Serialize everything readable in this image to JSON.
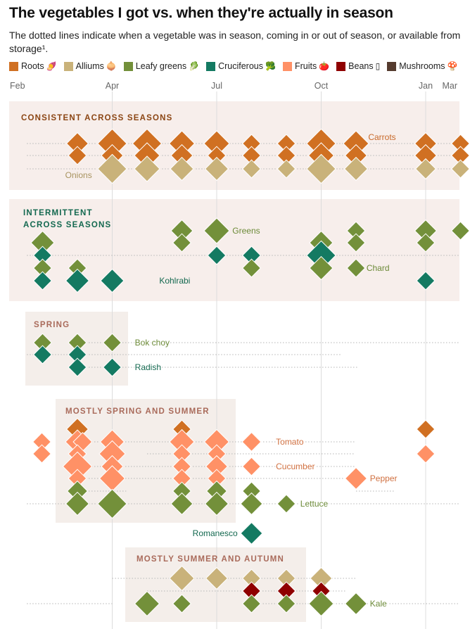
{
  "header": {
    "title": "The vegetables I got vs. when they're actually in season",
    "subtitle": "The dotted lines indicate when a vegetable was in season, coming in or out of season, or available from storage¹."
  },
  "legend": [
    {
      "label": "Roots",
      "color": "#d07022",
      "emoji": "🍠",
      "icon": "sweet-potato-icon"
    },
    {
      "label": "Alliums",
      "color": "#c9b27a",
      "emoji": "🧅",
      "icon": "onion-icon"
    },
    {
      "label": "Leafy greens",
      "color": "#73903a",
      "emoji": "🥬",
      "icon": "leafy-green-icon"
    },
    {
      "label": "Cruciferous",
      "color": "#147a62",
      "emoji": "🥦",
      "icon": "broccoli-icon"
    },
    {
      "label": "Fruits",
      "color": "#ff9166",
      "emoji": "🍅",
      "icon": "tomato-icon"
    },
    {
      "label": "Beans",
      "color": "#8f0000",
      "emoji": "▯",
      "icon": "beans-icon"
    },
    {
      "label": "Mushrooms",
      "color": "#553b2e",
      "emoji": "🍄",
      "icon": "mushroom-icon"
    }
  ],
  "chart_data": {
    "type": "scatter",
    "title": "The vegetables I got vs. when they're actually in season",
    "x_axis": {
      "unit": "month index (0 = Feb)",
      "ticks": [
        {
          "label": "Feb",
          "value": 0
        },
        {
          "label": "Apr",
          "value": 2
        },
        {
          "label": "Jul",
          "value": 5
        },
        {
          "label": "Oct",
          "value": 8
        },
        {
          "label": "Jan",
          "value": 11
        },
        {
          "label": "Mar",
          "value": 13
        }
      ],
      "gridlines_at": [
        2,
        5,
        8,
        11
      ],
      "range": [
        -0.45,
        13.6
      ]
    },
    "size_scale_note": "diamond size = relative quantity purchased (1 small – 3 large)",
    "panels": [
      {
        "title": "CONSISTENT ACCROSS SEASONS",
        "title_text": "CONSISTENT ACROSS SEASONS",
        "title_color": "#8b4513",
        "rows": [
          {
            "category": "Roots",
            "season": [
              [
                -0.45,
                13.6
              ]
            ],
            "points": [
              [
                1,
                2
              ],
              [
                2,
                3
              ],
              [
                3,
                3
              ],
              [
                4,
                2.5
              ],
              [
                5,
                2.5
              ],
              [
                6,
                1.5
              ],
              [
                7,
                1.5
              ],
              [
                8,
                3
              ],
              [
                9,
                2.5
              ],
              [
                11,
                2
              ],
              [
                12,
                1.5
              ]
            ]
          },
          {
            "category": "Roots",
            "season": [
              [
                -0.45,
                13.6
              ]
            ],
            "points": [
              [
                1,
                1.5
              ],
              [
                2,
                2
              ],
              [
                3,
                2.5
              ],
              [
                4,
                2
              ],
              [
                5,
                1.5
              ],
              [
                6,
                1.5
              ],
              [
                7,
                1.5
              ],
              [
                8,
                2.5
              ],
              [
                9,
                2
              ],
              [
                11,
                2
              ],
              [
                12,
                1.5
              ]
            ]
          },
          {
            "category": "Alliums",
            "season": [
              [
                -0.45,
                13.6
              ]
            ],
            "points": [
              [
                2,
                3
              ],
              [
                3,
                2.5
              ],
              [
                4,
                2.2
              ],
              [
                5,
                2.2
              ],
              [
                6,
                1.5
              ],
              [
                7,
                1.5
              ],
              [
                8,
                3
              ],
              [
                9,
                2.2
              ],
              [
                11,
                1.8
              ],
              [
                12,
                1.5
              ]
            ]
          }
        ],
        "labels": [
          {
            "text": "Carrots",
            "row": 0,
            "x": 9.35,
            "color": "#c8692a"
          },
          {
            "text": "Onions",
            "row": 2,
            "x": 0.65,
            "color": "#a8935f",
            "below": true
          }
        ]
      },
      {
        "title_text": "INTERMITTENT\nACROSS SEASONS",
        "title_color": "#13684f",
        "rows": [
          {
            "category": "Leafy greens",
            "season": [],
            "points": [
              [
                4,
                2
              ],
              [
                5,
                2.5
              ],
              [
                9,
                1.5
              ],
              [
                11,
                2
              ],
              [
                12,
                1.5
              ]
            ]
          },
          {
            "category": "Leafy greens",
            "season": [],
            "points": [
              [
                0,
                2.2
              ],
              [
                4,
                1.5
              ],
              [
                8,
                2.2
              ],
              [
                9,
                1.5
              ],
              [
                11,
                1.5
              ]
            ]
          },
          {
            "category": "Cruciferous",
            "season": [
              [
                -0.45,
                13.6
              ]
            ],
            "points": [
              [
                0,
                1.5
              ],
              [
                5,
                1.5
              ],
              [
                6,
                1.5
              ],
              [
                8,
                3
              ]
            ]
          },
          {
            "category": "Leafy greens",
            "season": [],
            "points": [
              [
                0,
                1.5
              ],
              [
                1,
                1.5
              ],
              [
                6,
                1.5
              ],
              [
                8,
                2.2
              ],
              [
                9,
                1.5
              ]
            ]
          },
          {
            "category": "Cruciferous",
            "season": [],
            "points": [
              [
                0,
                1.5
              ],
              [
                1,
                2.2
              ],
              [
                2,
                2.2
              ],
              [
                11,
                1.5
              ]
            ]
          }
        ],
        "labels": [
          {
            "text": "Greens",
            "row": 0,
            "x": 5.45,
            "color": "#6c8a38"
          },
          {
            "text": "Kohlrabi",
            "row": 4,
            "x": 3.35,
            "color": "#13684f"
          },
          {
            "text": "Chard",
            "row": 3,
            "x": 9.3,
            "color": "#6c8a38"
          }
        ]
      },
      {
        "title_text": "SPRING",
        "title_color": "#a96a5a",
        "rows": [
          {
            "category": "Leafy greens",
            "season": [
              [
                1,
                11.95
              ]
            ],
            "points": [
              [
                0,
                1.5
              ],
              [
                1,
                1.5
              ],
              [
                2,
                1.5
              ]
            ]
          },
          {
            "category": "Cruciferous",
            "season": [
              [
                -0.45,
                8.6
              ]
            ],
            "points": [
              [
                0,
                1.5
              ],
              [
                1,
                1.5
              ]
            ]
          },
          {
            "category": "Cruciferous",
            "season": [
              [
                1,
                9.05
              ]
            ],
            "points": [
              [
                1,
                1.5
              ],
              [
                2,
                1.5
              ]
            ]
          }
        ],
        "labels": [
          {
            "text": "Bok choy",
            "row": 0,
            "x": 2.65,
            "color": "#6c8a38"
          },
          {
            "text": "Radish",
            "row": 2,
            "x": 2.65,
            "color": "#13684f"
          }
        ]
      },
      {
        "title_text": "MOSTLY SPRING AND SUMMER",
        "title_color": "#a96a5a",
        "rows": [
          {
            "category": "Roots",
            "season": [],
            "points": [
              [
                1,
                2
              ],
              [
                4,
                1.5
              ],
              [
                11,
                1.5
              ]
            ]
          },
          {
            "category": "Fruits",
            "season": [
              [
                1,
                8.95
              ]
            ],
            "points": [
              [
                -0.02,
                1.5
              ],
              [
                1,
                2.3
              ],
              [
                1.15,
                1.6
              ],
              [
                2,
                2.3
              ],
              [
                4,
                2.4
              ],
              [
                5,
                2.4
              ],
              [
                6,
                1.6
              ]
            ]
          },
          {
            "category": "Fruits",
            "season": [
              [
                3,
                8.95
              ]
            ],
            "points": [
              [
                -0.02,
                1.5
              ],
              [
                1,
                1.5
              ],
              [
                2,
                2.6
              ],
              [
                4,
                1.5
              ],
              [
                5,
                1.5
              ],
              [
                11,
                1.5
              ]
            ]
          },
          {
            "category": "Fruits",
            "season": [
              [
                1,
                8.95
              ]
            ],
            "points": [
              [
                1,
                3
              ],
              [
                2,
                2
              ],
              [
                4,
                1.5
              ],
              [
                5,
                2
              ],
              [
                6,
                1.5
              ]
            ]
          },
          {
            "category": "Fruits",
            "season": [
              [
                1,
                9
              ]
            ],
            "points": [
              [
                1,
                1.5
              ],
              [
                2,
                2.5
              ],
              [
                4,
                1.5
              ],
              [
                5,
                1.5
              ],
              [
                9,
                2
              ]
            ]
          },
          {
            "category": "Leafy greens",
            "season": [
              [
                1,
                2.4
              ],
              [
                9,
                10.1
              ]
            ],
            "points": [
              [
                1,
                1.8
              ],
              [
                4,
                1.5
              ],
              [
                5,
                1.8
              ],
              [
                6,
                1.5
              ]
            ]
          },
          {
            "category": "Leafy greens",
            "season": [
              [
                -0.45,
                13.6
              ]
            ],
            "points": [
              [
                1,
                2.2
              ],
              [
                2,
                3
              ],
              [
                4,
                2
              ],
              [
                5,
                2.2
              ],
              [
                6,
                2
              ],
              [
                7,
                1.5
              ]
            ]
          },
          {
            "category": "Cruciferous",
            "season": [],
            "points": [
              [
                6,
                2
              ]
            ]
          }
        ],
        "labels": [
          {
            "text": "Tomato",
            "row": 1,
            "x": 6.7,
            "color": "#d07040"
          },
          {
            "text": "Cucumber",
            "row": 3,
            "x": 6.7,
            "color": "#d07040"
          },
          {
            "text": "Pepper",
            "row": 4,
            "x": 9.4,
            "color": "#d07040"
          },
          {
            "text": "Lettuce",
            "row": 6,
            "x": 7.4,
            "color": "#6c8a38"
          },
          {
            "text": "Romanesco",
            "row": 7,
            "x": 5.6,
            "color": "#13684f",
            "anchor": "end"
          }
        ]
      },
      {
        "title_text": "MOSTLY SUMMER AND AUTUMN",
        "title_color": "#a96a5a",
        "rows": [
          {
            "category": "Alliums",
            "season": [
              [
                2,
                9
              ]
            ],
            "points": [
              [
                4,
                2.4
              ],
              [
                5,
                2
              ],
              [
                6,
                1.5
              ],
              [
                7,
                1.5
              ],
              [
                8,
                2
              ]
            ]
          },
          {
            "category": "Beans",
            "season": [
              [
                3,
                8.7
              ]
            ],
            "points": [
              [
                6,
                1.5
              ],
              [
                7,
                1.5
              ],
              [
                8,
                1.5
              ]
            ]
          },
          {
            "category": "Leafy greens",
            "season": [
              [
                -0.45,
                2
              ],
              [
                6,
                13
              ]
            ],
            "points": [
              [
                3,
                2.4
              ],
              [
                4,
                1.5
              ],
              [
                6,
                1.5
              ],
              [
                7,
                1.5
              ],
              [
                8,
                2.4
              ],
              [
                9,
                2
              ]
            ]
          }
        ],
        "labels": [
          {
            "text": "Kale",
            "row": 2,
            "x": 9.4,
            "color": "#6c8a38"
          }
        ]
      }
    ]
  }
}
